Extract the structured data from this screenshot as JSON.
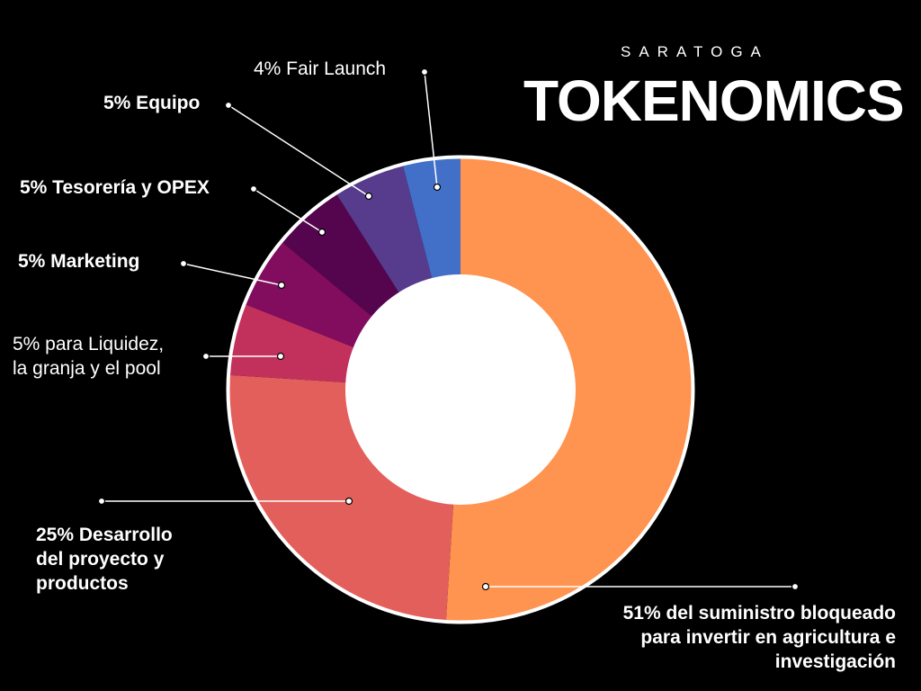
{
  "header": {
    "brand": "SARATOGA",
    "title": "TOKENOMICS"
  },
  "chart_data": {
    "type": "pie",
    "title": "TOKENOMICS",
    "donut": true,
    "slices": [
      {
        "name": "51% del suministro bloqueado para invertir en agricultura e investigación",
        "value": 51,
        "color": "#ff9350"
      },
      {
        "name": "25% Desarrollo del proyecto y productos",
        "value": 25,
        "color": "#e35f5b"
      },
      {
        "name": "5% para Liquidez, la granja y el pool",
        "value": 5,
        "color": "#c2315c"
      },
      {
        "name": "5% Marketing",
        "value": 5,
        "color": "#820c5e"
      },
      {
        "name": "5% Tesorería y OPEX",
        "value": 5,
        "color": "#54054d"
      },
      {
        "name": "5% Equipo",
        "value": 5,
        "color": "#573c8d"
      },
      {
        "name": "4% Fair Launch",
        "value": 4,
        "color": "#4270c9"
      }
    ]
  },
  "labels": {
    "fair_launch": "4% Fair Launch",
    "equipo": "5% Equipo",
    "tesoreria": "5% Tesorería y OPEX",
    "marketing": "5% Marketing",
    "liquidez": [
      "5% para Liquidez,",
      "la granja y el pool"
    ],
    "desarrollo": [
      "25% Desarrollo",
      "del proyecto y",
      "productos"
    ],
    "suministro": [
      "51%  del suministro bloqueado",
      "para invertir en agricultura e",
      "investigación"
    ]
  }
}
